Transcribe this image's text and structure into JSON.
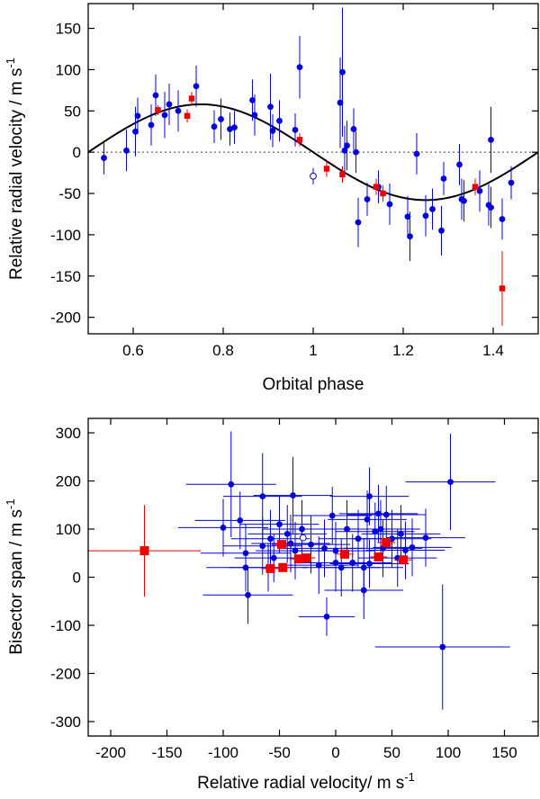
{
  "chart_data": [
    {
      "type": "scatter",
      "xlabel": "Orbital phase",
      "ylabel": "Relative radial velocity / m s",
      "ylabel_sup": "-1",
      "xlim": [
        0.5,
        1.5
      ],
      "ylim": [
        -220,
        180
      ],
      "xticks": [
        "0.6",
        "0.8",
        "1",
        "1.2",
        "1.4"
      ],
      "xtick_values": [
        0.6,
        0.8,
        1.0,
        1.2,
        1.4
      ],
      "yticks": [
        "150",
        "100",
        "50",
        "0",
        "-50",
        "-100",
        "-150",
        "-200"
      ],
      "ytick_values": [
        150,
        100,
        50,
        0,
        -50,
        -100,
        -150,
        -200
      ],
      "zero_line": true,
      "model": {
        "amplitude": 58,
        "phase_of_max": 0.75,
        "period_in_phase": 1.0
      },
      "colors": {
        "blue": "#0000dd",
        "red": "#ee0000",
        "model": "#000000"
      },
      "series": [
        {
          "marker": "blue-circle",
          "points": [
            [
              0.535,
              -7,
              20
            ],
            [
              0.585,
              2,
              25
            ],
            [
              0.605,
              25,
              30
            ],
            [
              0.61,
              44,
              22
            ],
            [
              0.64,
              33,
              25
            ],
            [
              0.65,
              69,
              25
            ],
            [
              0.67,
              45,
              28
            ],
            [
              0.68,
              58,
              25
            ],
            [
              0.7,
              50,
              25
            ],
            [
              0.74,
              80,
              25
            ],
            [
              0.78,
              31,
              20
            ],
            [
              0.795,
              40,
              25
            ],
            [
              0.815,
              28,
              20
            ],
            [
              0.825,
              30,
              20
            ],
            [
              0.865,
              63,
              25
            ],
            [
              0.87,
              45,
              25
            ],
            [
              0.905,
              55,
              40
            ],
            [
              0.91,
              26,
              20
            ],
            [
              0.925,
              38,
              25
            ],
            [
              0.96,
              27,
              20
            ],
            [
              0.97,
              103,
              38
            ],
            [
              1.06,
              60,
              55
            ],
            [
              1.065,
              97,
              78
            ],
            [
              1.07,
              2,
              30
            ],
            [
              1.075,
              8,
              30
            ],
            [
              1.09,
              28,
              25
            ],
            [
              1.095,
              0,
              25
            ],
            [
              1.1,
              -85,
              30
            ],
            [
              1.12,
              -57,
              20
            ],
            [
              1.145,
              -42,
              20
            ],
            [
              1.17,
              -63,
              25
            ],
            [
              1.21,
              -78,
              25
            ],
            [
              1.215,
              -102,
              30
            ],
            [
              1.23,
              -2,
              25
            ],
            [
              1.25,
              -77,
              25
            ],
            [
              1.265,
              -69,
              25
            ],
            [
              1.285,
              -95,
              30
            ],
            [
              1.29,
              -32,
              20
            ],
            [
              1.325,
              -15,
              25
            ],
            [
              1.33,
              -57,
              25
            ],
            [
              1.335,
              -59,
              25
            ],
            [
              1.37,
              -47,
              25
            ],
            [
              1.39,
              -64,
              25
            ],
            [
              1.395,
              -67,
              25
            ],
            [
              1.395,
              15,
              40
            ],
            [
              1.42,
              -81,
              25
            ],
            [
              1.44,
              -37,
              20
            ]
          ]
        },
        {
          "marker": "blue-open-circle",
          "points": [
            [
              1.0,
              -29,
              10
            ]
          ]
        },
        {
          "marker": "red-square",
          "points": [
            [
              0.655,
              51,
              6
            ],
            [
              0.72,
              44,
              8
            ],
            [
              0.73,
              65,
              8
            ],
            [
              0.97,
              15,
              8
            ],
            [
              1.03,
              -20,
              10
            ],
            [
              1.065,
              -27,
              10
            ],
            [
              1.14,
              -42,
              10
            ],
            [
              1.155,
              -50,
              10
            ],
            [
              1.36,
              -42,
              10
            ],
            [
              1.42,
              -165,
              45
            ]
          ]
        }
      ]
    },
    {
      "type": "scatter",
      "xlabel": "Relative radial velocity/ m s",
      "xlabel_sup": "-1",
      "ylabel": "Bisector span / m s",
      "ylabel_sup": "-1",
      "xlim": [
        -220,
        180
      ],
      "ylim": [
        -330,
        330
      ],
      "xticks": [
        "-200",
        "-150",
        "-100",
        "-50",
        "0",
        "50",
        "100",
        "150"
      ],
      "xtick_values": [
        -200,
        -150,
        -100,
        -50,
        0,
        50,
        100,
        150
      ],
      "yticks": [
        "300",
        "200",
        "100",
        "0",
        "-100",
        "-200",
        "-300"
      ],
      "ytick_values": [
        300,
        200,
        100,
        0,
        -100,
        -200,
        -300
      ],
      "series": [
        {
          "marker": "blue-circle",
          "points": [
            [
              -93,
              193,
              40,
              110
            ],
            [
              102,
              198,
              40,
              100
            ],
            [
              -65,
              168,
              35,
              90
            ],
            [
              -38,
              170,
              35,
              80
            ],
            [
              -85,
              118,
              40,
              60
            ],
            [
              -80,
              50,
              40,
              60
            ],
            [
              -78,
              -37,
              40,
              60
            ],
            [
              -65,
              65,
              35,
              60
            ],
            [
              -58,
              80,
              35,
              60
            ],
            [
              -50,
              110,
              35,
              60
            ],
            [
              -43,
              90,
              35,
              60
            ],
            [
              -40,
              70,
              35,
              60
            ],
            [
              -36,
              55,
              35,
              60
            ],
            [
              -30,
              100,
              35,
              60
            ],
            [
              -22,
              68,
              35,
              60
            ],
            [
              -15,
              25,
              35,
              60
            ],
            [
              -10,
              60,
              35,
              60
            ],
            [
              -8,
              -82,
              25,
              40
            ],
            [
              -3,
              128,
              35,
              60
            ],
            [
              0,
              55,
              35,
              60
            ],
            [
              0,
              30,
              35,
              60
            ],
            [
              5,
              20,
              35,
              60
            ],
            [
              10,
              100,
              35,
              60
            ],
            [
              15,
              30,
              35,
              60
            ],
            [
              20,
              80,
              35,
              60
            ],
            [
              25,
              20,
              35,
              60
            ],
            [
              25,
              -27,
              35,
              60
            ],
            [
              28,
              120,
              35,
              60
            ],
            [
              30,
              168,
              35,
              60
            ],
            [
              35,
              95,
              35,
              60
            ],
            [
              38,
              132,
              35,
              60
            ],
            [
              40,
              100,
              35,
              60
            ],
            [
              42,
              60,
              35,
              60
            ],
            [
              45,
              130,
              35,
              60
            ],
            [
              50,
              80,
              35,
              60
            ],
            [
              55,
              40,
              35,
              60
            ],
            [
              58,
              90,
              35,
              60
            ],
            [
              62,
              56,
              35,
              60
            ],
            [
              68,
              62,
              35,
              60
            ],
            [
              80,
              82,
              35,
              60
            ],
            [
              95,
              -145,
              60,
              130
            ],
            [
              -100,
              103,
              40,
              60
            ],
            [
              -60,
              20,
              35,
              50
            ],
            [
              -55,
              40,
              35,
              50
            ],
            [
              30,
              28,
              35,
              50
            ],
            [
              -80,
              20,
              35,
              50
            ]
          ]
        },
        {
          "marker": "blue-open-circle",
          "points": [
            [
              -29,
              82,
              0,
              0
            ]
          ]
        },
        {
          "marker": "red-square",
          "points": [
            [
              -170,
              55,
              50,
              95
            ],
            [
              -58,
              18,
              8,
              8
            ],
            [
              -47,
              20,
              8,
              8
            ],
            [
              -48,
              68,
              8,
              8
            ],
            [
              -33,
              38,
              8,
              8
            ],
            [
              -26,
              40,
              8,
              8
            ],
            [
              8,
              48,
              8,
              8
            ],
            [
              38,
              42,
              8,
              8
            ],
            [
              45,
              72,
              8,
              8
            ],
            [
              60,
              36,
              8,
              8
            ]
          ]
        }
      ]
    }
  ]
}
